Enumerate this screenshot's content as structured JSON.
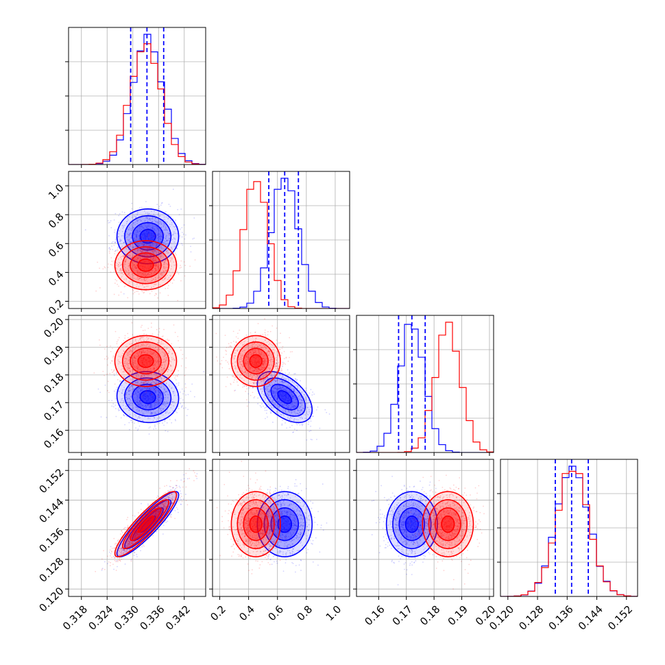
{
  "chart_data": {
    "type": "corner",
    "title": "",
    "grid": true,
    "parameters": [
      {
        "range": [
          0.315,
          0.347
        ],
        "ticks": [
          0.318,
          0.324,
          0.33,
          0.336,
          0.342
        ],
        "tick_labels": [
          "0.318",
          "0.324",
          "0.330",
          "0.336",
          "0.342"
        ]
      },
      {
        "range": [
          0.15,
          1.1
        ],
        "ticks": [
          0.2,
          0.4,
          0.6,
          0.8,
          1.0
        ],
        "tick_labels": [
          "0.2",
          "0.4",
          "0.6",
          "0.8",
          "1.0"
        ]
      },
      {
        "range": [
          0.152,
          0.2015
        ],
        "ticks": [
          0.16,
          0.17,
          0.18,
          0.19,
          0.2
        ],
        "tick_labels": [
          "0.16",
          "0.17",
          "0.18",
          "0.19",
          "0.20"
        ]
      },
      {
        "range": [
          0.118,
          0.155
        ],
        "ticks": [
          0.12,
          0.128,
          0.136,
          0.144,
          0.152
        ],
        "tick_labels": [
          "0.120",
          "0.128",
          "0.136",
          "0.144",
          "0.152"
        ]
      }
    ],
    "series": [
      {
        "color": "#0000ff",
        "mean": [
          0.3335,
          0.65,
          0.172,
          0.1375
        ],
        "std": [
          0.0036,
          0.095,
          0.0046,
          0.0044
        ],
        "quantile_lines": [
          [
            0.3295,
            0.3333,
            0.3372
          ],
          [
            0.54,
            0.65,
            0.745
          ],
          [
            0.1672,
            0.172,
            0.1768
          ],
          [
            0.1328,
            0.1372,
            0.1417
          ]
        ],
        "corr": [
          [
            1,
            0,
            -0.05,
            0.9
          ],
          [
            0,
            1,
            -0.5,
            0
          ],
          [
            -0.05,
            -0.5,
            1,
            0
          ],
          [
            0.9,
            0,
            0,
            1
          ]
        ]
      },
      {
        "color": "#ff0000",
        "mean": [
          0.333,
          0.45,
          0.185,
          0.1375
        ],
        "std": [
          0.0036,
          0.085,
          0.0046,
          0.0044
        ],
        "quantile_lines": [],
        "corr": [
          [
            1,
            0,
            0,
            0.9
          ],
          [
            0,
            1,
            0,
            0
          ],
          [
            0,
            0,
            1,
            0
          ],
          [
            0.9,
            0,
            0,
            1
          ]
        ]
      }
    ],
    "contour_levels": [
      0.5,
      1.0,
      1.5,
      2.0
    ]
  }
}
